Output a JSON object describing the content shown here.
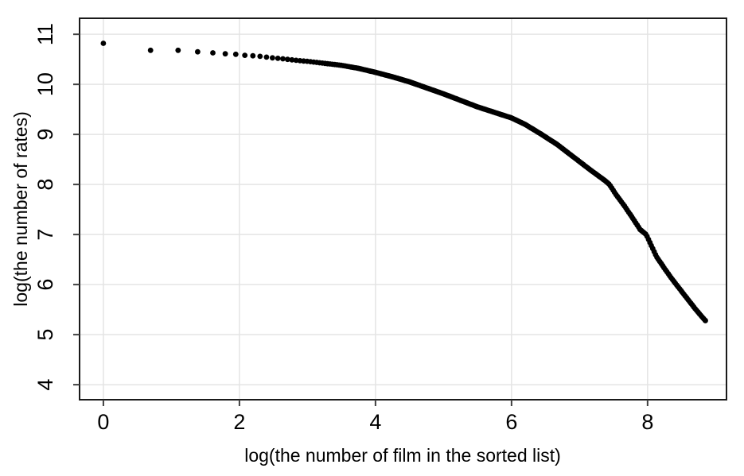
{
  "figure": {
    "background_color": "#ffffff",
    "type_note": "R base-graphics style scatter plot"
  },
  "chart_data": {
    "type": "scatter",
    "title": "",
    "xlabel": "log(the number of film in the sorted list)",
    "ylabel": "log(the number of rates)",
    "xlim": [
      -0.35,
      9.16
    ],
    "ylim": [
      3.7,
      11.32
    ],
    "x_ticks": [
      0,
      2,
      4,
      6,
      8
    ],
    "y_ticks": [
      4,
      5,
      6,
      7,
      8,
      9,
      10,
      11
    ],
    "grid": true,
    "legend": "none",
    "point_color": "#000000",
    "grid_color": "#e4e4e4",
    "box_color": "#1a1a1a",
    "tick_color": "#404040",
    "points_description": "Dots plotted at x = log(rank) for films ranked 1..~7000 by number of ratings; individual dots visible for the first ~15 ranks, merging into a thick curve afterwards. y = log(number of ratings).",
    "curve_points": [
      [
        0.0,
        10.82
      ],
      [
        0.69,
        10.68
      ],
      [
        1.1,
        10.68
      ],
      [
        1.39,
        10.65
      ],
      [
        1.61,
        10.63
      ],
      [
        1.79,
        10.61
      ],
      [
        1.95,
        10.6
      ],
      [
        2.08,
        10.58
      ],
      [
        2.2,
        10.57
      ],
      [
        2.3,
        10.56
      ],
      [
        2.48,
        10.53
      ],
      [
        2.64,
        10.51
      ],
      [
        2.83,
        10.48
      ],
      [
        3.0,
        10.46
      ],
      [
        3.25,
        10.42
      ],
      [
        3.5,
        10.38
      ],
      [
        3.75,
        10.32
      ],
      [
        4.0,
        10.24
      ],
      [
        4.25,
        10.15
      ],
      [
        4.5,
        10.05
      ],
      [
        4.75,
        9.93
      ],
      [
        5.0,
        9.81
      ],
      [
        5.25,
        9.68
      ],
      [
        5.5,
        9.55
      ],
      [
        5.75,
        9.44
      ],
      [
        6.0,
        9.33
      ],
      [
        6.2,
        9.2
      ],
      [
        6.43,
        9.01
      ],
      [
        6.67,
        8.8
      ],
      [
        6.9,
        8.56
      ],
      [
        7.13,
        8.32
      ],
      [
        7.37,
        8.08
      ],
      [
        7.44,
        8.0
      ],
      [
        7.54,
        7.79
      ],
      [
        7.66,
        7.57
      ],
      [
        7.78,
        7.33
      ],
      [
        7.89,
        7.1
      ],
      [
        7.98,
        7.0
      ],
      [
        8.13,
        6.56
      ],
      [
        8.25,
        6.32
      ],
      [
        8.36,
        6.11
      ],
      [
        8.48,
        5.9
      ],
      [
        8.6,
        5.69
      ],
      [
        8.71,
        5.5
      ],
      [
        8.81,
        5.34
      ],
      [
        8.85,
        5.28
      ]
    ]
  }
}
